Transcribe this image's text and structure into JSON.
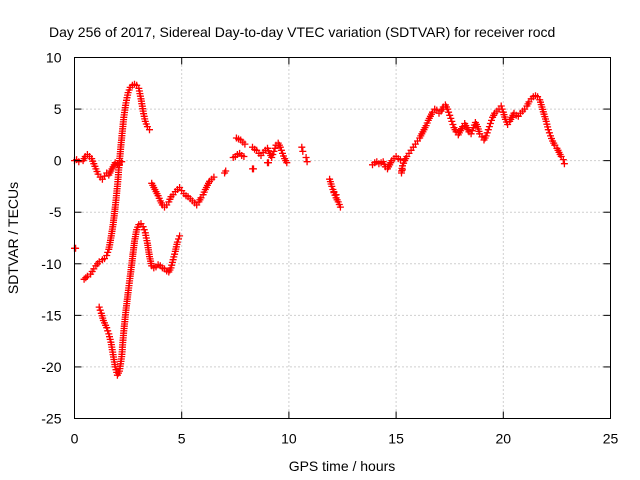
{
  "chart_data": {
    "type": "scatter",
    "title": "Day 256 of 2017, Sidereal Day-to-day VTEC variation (SDTVAR) for receiver rocd",
    "xlabel": "GPS time / hours",
    "ylabel": "SDTVAR / TECUs",
    "xlim": [
      0,
      25
    ],
    "ylim": [
      -25,
      10
    ],
    "xticks": [
      0,
      5,
      10,
      15,
      20,
      25
    ],
    "yticks": [
      -25,
      -20,
      -15,
      -10,
      -5,
      0,
      5,
      10
    ],
    "grid": true,
    "marker": "plus",
    "color": "#ff0000",
    "segments": [
      [
        [
          0.0,
          -8.5
        ],
        [
          0.05,
          -8.5
        ]
      ],
      [
        [
          0.0,
          0.0
        ],
        [
          0.1,
          0.1
        ],
        [
          0.2,
          -0.1
        ]
      ],
      [
        [
          0.4,
          0.0
        ],
        [
          0.5,
          0.4
        ],
        [
          0.6,
          0.6
        ],
        [
          0.7,
          0.4
        ],
        [
          0.8,
          0.2
        ],
        [
          0.9,
          -0.3
        ],
        [
          1.0,
          -0.8
        ],
        [
          1.1,
          -1.3
        ],
        [
          1.2,
          -1.6
        ],
        [
          1.3,
          -1.8
        ],
        [
          1.4,
          -1.5
        ],
        [
          1.5,
          -1.2
        ],
        [
          1.6,
          -1.4
        ],
        [
          1.7,
          -1.0
        ],
        [
          1.8,
          -0.6
        ],
        [
          1.9,
          -0.2
        ],
        [
          2.0,
          -0.3
        ],
        [
          2.1,
          -0.4
        ],
        [
          2.2,
          -0.1
        ]
      ],
      [
        [
          0.45,
          -11.5
        ],
        [
          0.6,
          -11.2
        ],
        [
          0.75,
          -11.0
        ],
        [
          0.9,
          -10.5
        ],
        [
          1.0,
          -10.2
        ],
        [
          1.15,
          -9.8
        ],
        [
          1.3,
          -9.6
        ],
        [
          1.4,
          -9.5
        ],
        [
          1.5,
          -9.2
        ],
        [
          1.6,
          -8.6
        ],
        [
          1.7,
          -7.5
        ],
        [
          1.8,
          -6.2
        ],
        [
          1.9,
          -4.5
        ],
        [
          2.0,
          -2.5
        ],
        [
          2.1,
          0.0
        ],
        [
          2.2,
          2.2
        ],
        [
          2.3,
          4.2
        ],
        [
          2.4,
          5.6
        ],
        [
          2.5,
          6.6
        ],
        [
          2.6,
          7.1
        ],
        [
          2.7,
          7.3
        ],
        [
          2.8,
          7.4
        ],
        [
          2.9,
          7.3
        ],
        [
          3.0,
          7.0
        ],
        [
          3.1,
          6.0
        ],
        [
          3.2,
          4.8
        ],
        [
          3.3,
          3.8
        ],
        [
          3.4,
          3.3
        ],
        [
          3.5,
          3.0
        ]
      ],
      [
        [
          1.15,
          -14.2
        ],
        [
          1.25,
          -14.8
        ],
        [
          1.35,
          -15.5
        ],
        [
          1.5,
          -16.2
        ],
        [
          1.6,
          -16.8
        ],
        [
          1.7,
          -17.6
        ],
        [
          1.8,
          -18.8
        ],
        [
          1.9,
          -20.0
        ],
        [
          2.0,
          -20.8
        ],
        [
          2.1,
          -20.4
        ],
        [
          2.2,
          -19.0
        ],
        [
          2.3,
          -16.5
        ],
        [
          2.4,
          -14.5
        ],
        [
          2.5,
          -12.8
        ],
        [
          2.6,
          -11.2
        ],
        [
          2.7,
          -9.5
        ],
        [
          2.8,
          -7.8
        ],
        [
          2.9,
          -6.7
        ],
        [
          3.0,
          -6.2
        ],
        [
          3.1,
          -6.1
        ],
        [
          3.2,
          -6.4
        ],
        [
          3.3,
          -7.0
        ],
        [
          3.4,
          -8.0
        ],
        [
          3.5,
          -9.3
        ],
        [
          3.6,
          -10.2
        ],
        [
          3.7,
          -10.4
        ],
        [
          3.8,
          -10.3
        ],
        [
          3.9,
          -10.1
        ],
        [
          4.0,
          -10.2
        ],
        [
          4.1,
          -10.4
        ],
        [
          4.2,
          -10.5
        ],
        [
          4.3,
          -10.7
        ],
        [
          4.4,
          -10.8
        ],
        [
          4.5,
          -10.4
        ],
        [
          4.6,
          -9.6
        ],
        [
          4.7,
          -8.8
        ],
        [
          4.8,
          -7.9
        ],
        [
          4.9,
          -7.3
        ]
      ],
      [
        [
          3.6,
          -2.2
        ],
        [
          3.7,
          -2.6
        ],
        [
          3.8,
          -3.0
        ],
        [
          3.9,
          -3.4
        ],
        [
          4.0,
          -3.9
        ],
        [
          4.1,
          -4.3
        ],
        [
          4.2,
          -4.5
        ],
        [
          4.3,
          -4.3
        ],
        [
          4.4,
          -4.0
        ],
        [
          4.5,
          -3.5
        ],
        [
          4.6,
          -3.3
        ],
        [
          4.7,
          -3.0
        ],
        [
          4.8,
          -2.8
        ],
        [
          4.9,
          -2.6
        ],
        [
          5.0,
          -2.9
        ],
        [
          5.1,
          -3.2
        ],
        [
          5.2,
          -3.4
        ],
        [
          5.3,
          -3.5
        ],
        [
          5.4,
          -3.7
        ],
        [
          5.5,
          -3.9
        ],
        [
          5.6,
          -4.1
        ],
        [
          5.7,
          -4.3
        ],
        [
          5.8,
          -4.0
        ],
        [
          5.9,
          -3.6
        ],
        [
          6.0,
          -3.3
        ],
        [
          6.1,
          -2.8
        ],
        [
          6.2,
          -2.4
        ],
        [
          6.3,
          -2.0
        ],
        [
          6.4,
          -1.8
        ],
        [
          6.5,
          -1.6
        ]
      ],
      [
        [
          7.0,
          -1.2
        ],
        [
          7.05,
          -1.0
        ]
      ],
      [
        [
          7.4,
          0.3
        ],
        [
          7.5,
          0.4
        ],
        [
          7.6,
          0.6
        ],
        [
          7.7,
          0.7
        ],
        [
          7.8,
          0.5
        ],
        [
          7.9,
          0.4
        ]
      ],
      [
        [
          7.55,
          2.2
        ],
        [
          7.65,
          2.1
        ],
        [
          7.75,
          2.0
        ],
        [
          7.85,
          1.8
        ],
        [
          7.95,
          1.6
        ]
      ],
      [
        [
          8.3,
          -0.8
        ],
        [
          8.35,
          -0.8
        ]
      ],
      [
        [
          8.3,
          1.3
        ],
        [
          8.4,
          1.1
        ],
        [
          8.5,
          1.0
        ],
        [
          8.6,
          0.7
        ],
        [
          8.7,
          0.5
        ],
        [
          8.8,
          0.8
        ],
        [
          8.9,
          1.0
        ],
        [
          9.0,
          1.2
        ],
        [
          9.1,
          0.7
        ],
        [
          9.2,
          0.3
        ],
        [
          9.3,
          0.9
        ],
        [
          9.4,
          1.5
        ],
        [
          9.5,
          1.7
        ],
        [
          9.6,
          1.3
        ],
        [
          9.7,
          0.7
        ],
        [
          9.8,
          0.2
        ],
        [
          9.9,
          -0.2
        ]
      ],
      [
        [
          9.0,
          -0.2
        ],
        [
          9.05,
          -0.2
        ]
      ],
      [
        [
          10.6,
          1.3
        ],
        [
          10.65,
          0.9
        ]
      ],
      [
        [
          10.8,
          0.3
        ],
        [
          10.85,
          -0.1
        ]
      ],
      [
        [
          11.9,
          -1.8
        ],
        [
          12.0,
          -2.5
        ],
        [
          12.1,
          -3.1
        ],
        [
          12.2,
          -3.6
        ],
        [
          12.3,
          -4.0
        ],
        [
          12.4,
          -4.5
        ]
      ],
      [
        [
          12.1,
          -3.0
        ],
        [
          12.2,
          -3.3
        ]
      ],
      [
        [
          13.9,
          -0.4
        ],
        [
          14.0,
          -0.2
        ],
        [
          14.1,
          -0.1
        ],
        [
          14.2,
          -0.3
        ],
        [
          14.3,
          -0.2
        ],
        [
          14.4,
          -0.1
        ],
        [
          14.5,
          -0.6
        ],
        [
          14.6,
          -0.8
        ],
        [
          14.7,
          -0.4
        ],
        [
          14.8,
          0.0
        ],
        [
          14.9,
          0.2
        ],
        [
          15.0,
          0.4
        ],
        [
          15.1,
          0.2
        ],
        [
          15.2,
          0.1
        ]
      ],
      [
        [
          15.25,
          -1.0
        ],
        [
          15.3,
          -0.5
        ],
        [
          15.4,
          0.0
        ],
        [
          15.5,
          0.4
        ],
        [
          15.6,
          0.7
        ],
        [
          15.7,
          1.0
        ],
        [
          15.8,
          1.3
        ],
        [
          15.9,
          1.6
        ],
        [
          16.0,
          1.9
        ],
        [
          16.1,
          2.2
        ],
        [
          16.2,
          2.6
        ],
        [
          16.3,
          3.0
        ],
        [
          16.4,
          3.4
        ],
        [
          16.5,
          3.9
        ],
        [
          16.6,
          4.3
        ],
        [
          16.7,
          4.7
        ],
        [
          16.8,
          5.0
        ],
        [
          16.9,
          4.9
        ],
        [
          17.0,
          4.6
        ],
        [
          17.1,
          4.8
        ],
        [
          17.2,
          5.2
        ],
        [
          17.3,
          5.4
        ],
        [
          17.4,
          5.0
        ],
        [
          17.5,
          4.4
        ],
        [
          17.6,
          3.8
        ],
        [
          17.7,
          3.2
        ],
        [
          17.8,
          2.8
        ],
        [
          17.9,
          2.5
        ],
        [
          18.0,
          2.9
        ],
        [
          18.1,
          3.3
        ],
        [
          18.2,
          3.6
        ],
        [
          18.3,
          3.2
        ],
        [
          18.4,
          2.8
        ],
        [
          18.5,
          2.6
        ],
        [
          18.6,
          3.2
        ],
        [
          18.7,
          3.7
        ],
        [
          18.8,
          3.3
        ],
        [
          18.9,
          2.6
        ],
        [
          19.0,
          2.3
        ],
        [
          19.1,
          2.0
        ],
        [
          19.2,
          2.4
        ],
        [
          19.3,
          3.0
        ],
        [
          19.4,
          3.6
        ],
        [
          19.5,
          4.2
        ],
        [
          19.6,
          4.6
        ],
        [
          19.7,
          4.8
        ],
        [
          19.8,
          5.0
        ],
        [
          19.9,
          5.3
        ],
        [
          20.0,
          4.7
        ],
        [
          20.1,
          4.0
        ],
        [
          20.2,
          3.5
        ],
        [
          20.3,
          3.8
        ],
        [
          20.4,
          4.2
        ],
        [
          20.5,
          4.6
        ],
        [
          20.6,
          4.4
        ],
        [
          20.7,
          4.3
        ],
        [
          20.8,
          4.6
        ],
        [
          20.9,
          4.8
        ],
        [
          21.0,
          5.0
        ],
        [
          21.1,
          5.3
        ],
        [
          21.2,
          5.7
        ],
        [
          21.3,
          6.0
        ],
        [
          21.4,
          6.2
        ],
        [
          21.5,
          6.3
        ],
        [
          21.6,
          6.2
        ],
        [
          21.7,
          5.9
        ],
        [
          21.8,
          5.2
        ],
        [
          21.9,
          4.5
        ],
        [
          22.0,
          3.8
        ],
        [
          22.1,
          3.0
        ],
        [
          22.2,
          2.4
        ],
        [
          22.3,
          1.9
        ],
        [
          22.4,
          1.5
        ],
        [
          22.5,
          1.2
        ],
        [
          22.6,
          0.8
        ],
        [
          22.7,
          0.4
        ],
        [
          22.8,
          0.1
        ],
        [
          22.85,
          -0.3
        ]
      ],
      [
        [
          15.25,
          -1.2
        ],
        [
          15.3,
          -0.9
        ]
      ]
    ]
  }
}
